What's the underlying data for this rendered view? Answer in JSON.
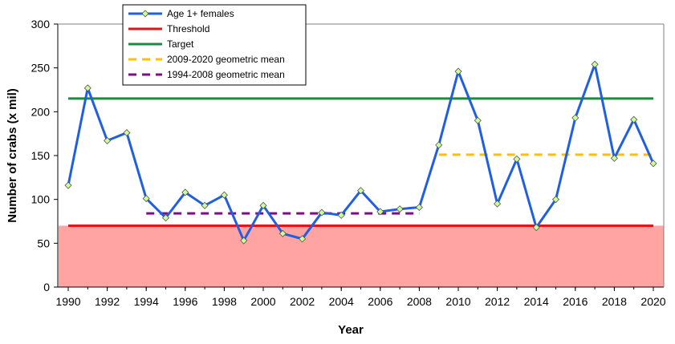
{
  "chart_data": {
    "type": "line",
    "title": "",
    "xlabel": "Year",
    "ylabel": "Number of crabs (x mil)",
    "xlim": [
      1990,
      2020
    ],
    "ylim": [
      0,
      300
    ],
    "x_ticks": [
      "1990",
      "1992",
      "1994",
      "1996",
      "1998",
      "2000",
      "2002",
      "2004",
      "2006",
      "2008",
      "2010",
      "2012",
      "2014",
      "2016",
      "2018",
      "2020"
    ],
    "y_ticks": [
      "0",
      "50",
      "100",
      "150",
      "200",
      "250",
      "300"
    ],
    "shaded_region": {
      "y_from": 0,
      "y_to": 70,
      "color": "#ffa3a3"
    },
    "legend_position": "top-left",
    "series": [
      {
        "name": "Age 1+ females",
        "style": "line-markers",
        "color": "#1f5fe0",
        "marker_color": "#ccff99",
        "x": [
          1990,
          1991,
          1992,
          1993,
          1994,
          1995,
          1996,
          1997,
          1998,
          1999,
          2000,
          2001,
          2002,
          2003,
          2004,
          2005,
          2006,
          2007,
          2008,
          2009,
          2010,
          2011,
          2012,
          2013,
          2014,
          2015,
          2016,
          2017,
          2018,
          2019,
          2020
        ],
        "y": [
          116,
          227,
          167,
          176,
          101,
          79,
          108,
          93,
          105,
          53,
          93,
          61,
          55,
          85,
          82,
          110,
          86,
          89,
          91,
          162,
          246,
          190,
          95,
          146,
          68,
          100,
          193,
          254,
          147,
          191,
          141
        ]
      },
      {
        "name": "Threshold",
        "style": "solid",
        "color": "#ee1111",
        "x": [
          1990,
          2020
        ],
        "y": [
          70,
          70
        ]
      },
      {
        "name": "Target",
        "style": "solid",
        "color": "#1a8c3c",
        "x": [
          1990,
          2020
        ],
        "y": [
          215,
          215
        ]
      },
      {
        "name": "2009-2020 geometric mean",
        "style": "dashed",
        "color": "#ffc000",
        "x": [
          2009,
          2020
        ],
        "y": [
          151,
          151
        ]
      },
      {
        "name": "1994-2008 geometric mean",
        "style": "dashed",
        "color": "#7b0f85",
        "x": [
          1994,
          2008
        ],
        "y": [
          84,
          84
        ]
      }
    ]
  }
}
